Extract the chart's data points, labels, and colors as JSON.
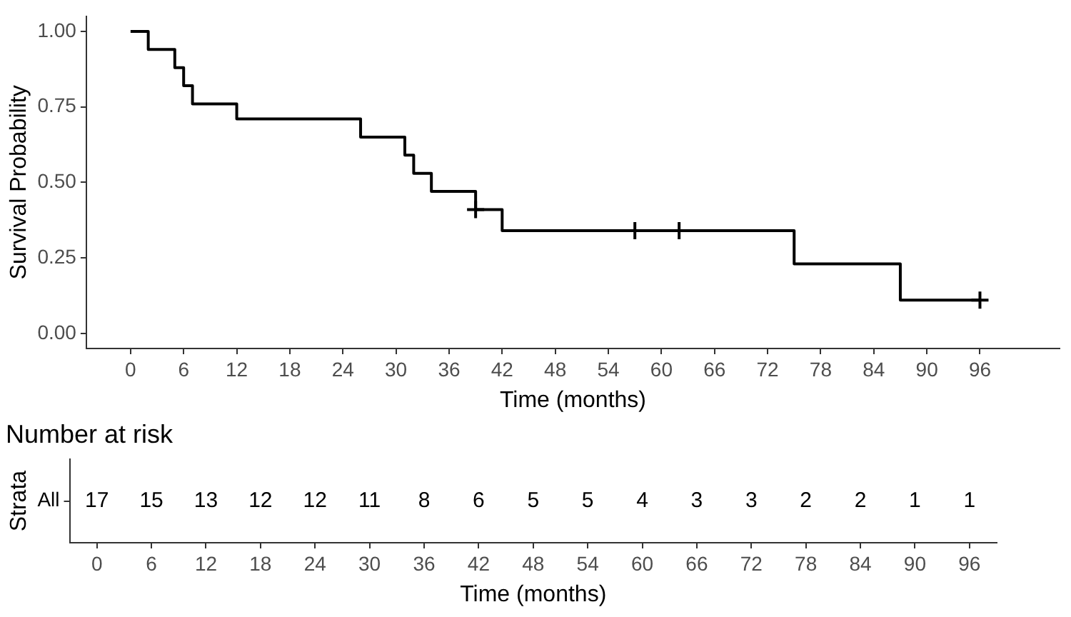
{
  "chart_data": [
    {
      "type": "step",
      "xlabel": "Time (months)",
      "ylabel": "Survival Probability",
      "xlim": [
        -5,
        105
      ],
      "ylim": [
        -0.05,
        1.05
      ],
      "xticks": [
        0,
        6,
        12,
        18,
        24,
        30,
        36,
        42,
        48,
        54,
        60,
        66,
        72,
        78,
        84,
        90,
        96
      ],
      "yticks": [
        {
          "value": 0,
          "label": "0.00"
        },
        {
          "value": 0.25,
          "label": "0.25"
        },
        {
          "value": 0.5,
          "label": "0.50"
        },
        {
          "value": 0.75,
          "label": "0.75"
        },
        {
          "value": 1,
          "label": "1.00"
        }
      ],
      "series": [
        {
          "type": "step",
          "color": "#000000",
          "x": [
            0,
            2,
            5,
            6,
            7,
            12,
            26,
            31,
            32,
            34,
            39,
            42,
            75,
            87,
            96
          ],
          "values": [
            1,
            0.94,
            0.88,
            0.82,
            0.76,
            0.71,
            0.65,
            0.59,
            0.53,
            0.47,
            0.41,
            0.34,
            0.23,
            0.11,
            0.11
          ]
        },
        {
          "type": "scatter",
          "marker": "cross",
          "color": "#000000",
          "x": [
            39,
            57,
            62,
            96
          ],
          "values": [
            0.41,
            0.34,
            0.34,
            0.11
          ]
        }
      ]
    },
    {
      "type": "heatmap",
      "title": "Number at risk",
      "xlabel": "Time (months)",
      "ylabel": "Strata",
      "categories": [
        "0",
        "6",
        "12",
        "18",
        "24",
        "30",
        "36",
        "42",
        "48",
        "54",
        "60",
        "66",
        "72",
        "78",
        "84",
        "90",
        "96"
      ],
      "y_categories": [
        "All"
      ],
      "data_labels": true,
      "cells": [
        [
          17,
          15,
          13,
          12,
          12,
          11,
          8,
          6,
          5,
          5,
          4,
          3,
          3,
          2,
          2,
          1,
          1
        ]
      ]
    }
  ]
}
